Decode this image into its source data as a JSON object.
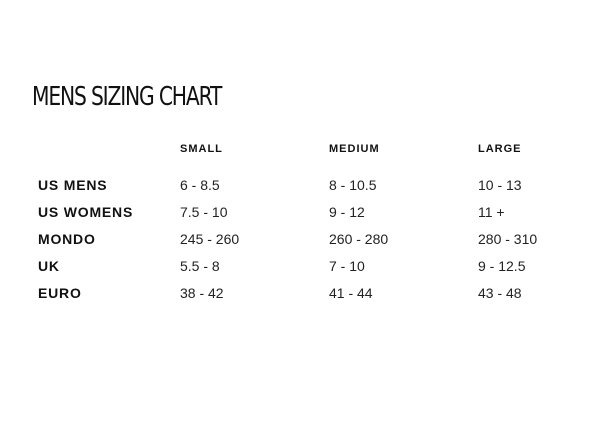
{
  "title": "MENS SIZING CHART",
  "columns": [
    "SMALL",
    "MEDIUM",
    "LARGE"
  ],
  "rows": [
    {
      "label": "US MENS",
      "values": [
        "6 - 8.5",
        "8 - 10.5",
        "10 - 13"
      ]
    },
    {
      "label": "US WOMENS",
      "values": [
        "7.5 - 10",
        "9 - 12",
        "11 +"
      ]
    },
    {
      "label": "MONDO",
      "values": [
        "245 - 260",
        "260 - 280",
        "280 - 310"
      ]
    },
    {
      "label": "UK",
      "values": [
        "5.5 - 8",
        "7 - 10",
        "9 - 12.5"
      ]
    },
    {
      "label": "EURO",
      "values": [
        "38 - 42",
        "41 - 44",
        "43 - 48"
      ]
    }
  ]
}
